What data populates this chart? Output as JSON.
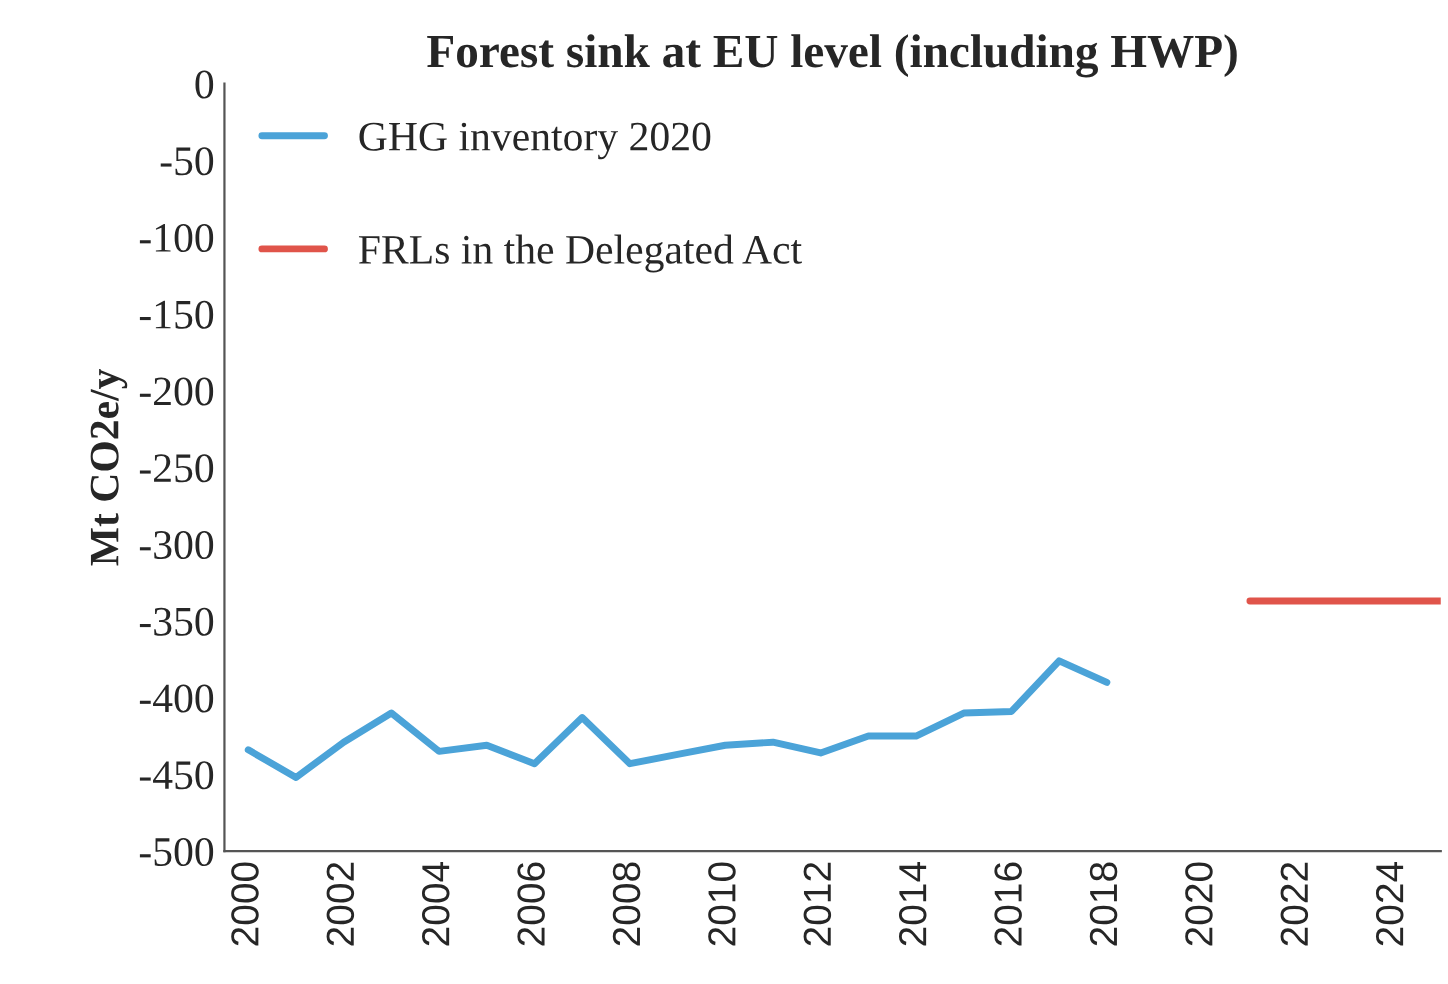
{
  "chart_data": {
    "type": "line",
    "title": "Forest sink at EU level (including HWP)",
    "ylabel": "Mt CO2e/y",
    "xlim": [
      1999.5,
      2025
    ],
    "xticks": [
      2000,
      2002,
      2004,
      2006,
      2008,
      2010,
      2012,
      2014,
      2016,
      2018,
      2020,
      2022,
      2024
    ],
    "ylim": [
      -500,
      0
    ],
    "yticks": [
      0,
      -50,
      -100,
      -150,
      -200,
      -250,
      -300,
      -350,
      -400,
      -450,
      -500
    ],
    "grid": false,
    "legend": "top left",
    "series": [
      {
        "name": "GHG inventory 2020",
        "color": "#4ba3d8",
        "x": [
          2000,
          2001,
          2002,
          2003,
          2004,
          2005,
          2006,
          2007,
          2008,
          2009,
          2010,
          2011,
          2012,
          2013,
          2014,
          2015,
          2016,
          2017,
          2018
        ],
        "values": [
          -434,
          -452,
          -429,
          -410,
          -435,
          -431,
          -443,
          -413,
          -443,
          -437,
          -431,
          -429,
          -436,
          -425,
          -425,
          -410,
          -409,
          -376,
          -390
        ]
      },
      {
        "name": "FRLs in the Delegated Act",
        "color": "#e0544a",
        "x": [
          2021,
          2025
        ],
        "values": [
          -337,
          -337
        ]
      }
    ]
  }
}
